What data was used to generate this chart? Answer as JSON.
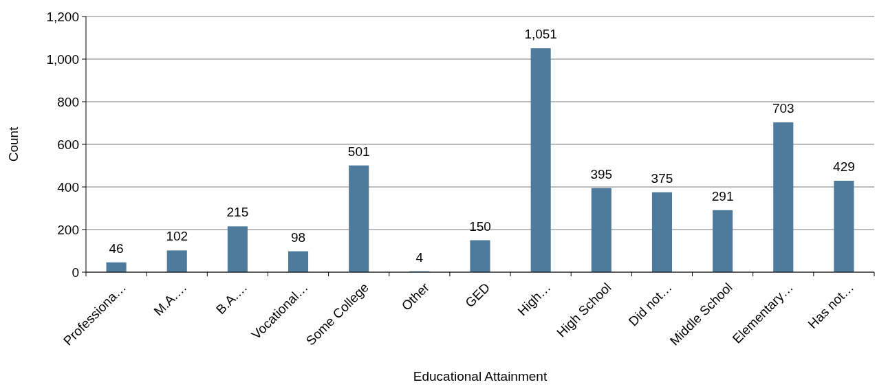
{
  "chart_data": {
    "type": "bar",
    "xlabel": "Educational Attainment",
    "ylabel": "Count",
    "categories": [
      "Professiona…",
      "M.A.…",
      "B.A.…",
      "Vocational…",
      "Some College",
      "Other",
      "GED",
      "High…",
      "High School",
      "Did not…",
      "Middle School",
      "Elementary…",
      "Has not…"
    ],
    "values": [
      46,
      102,
      215,
      98,
      501,
      4,
      150,
      1051,
      395,
      375,
      291,
      703,
      429
    ],
    "color": "#4e7b9b",
    "ylim": [
      0,
      1200
    ],
    "yticks": [
      {
        "value": 0,
        "label": "0"
      },
      {
        "value": 200,
        "label": "200"
      },
      {
        "value": 400,
        "label": "400"
      },
      {
        "value": 600,
        "label": "600"
      },
      {
        "value": 800,
        "label": "800"
      },
      {
        "value": 1000,
        "label": "1,000"
      },
      {
        "value": 1200,
        "label": "1,200"
      }
    ],
    "grid": "y",
    "value_labels": [
      "46",
      "102",
      "215",
      "98",
      "501",
      "4",
      "150",
      "1,051",
      "395",
      "375",
      "291",
      "703",
      "429"
    ]
  }
}
